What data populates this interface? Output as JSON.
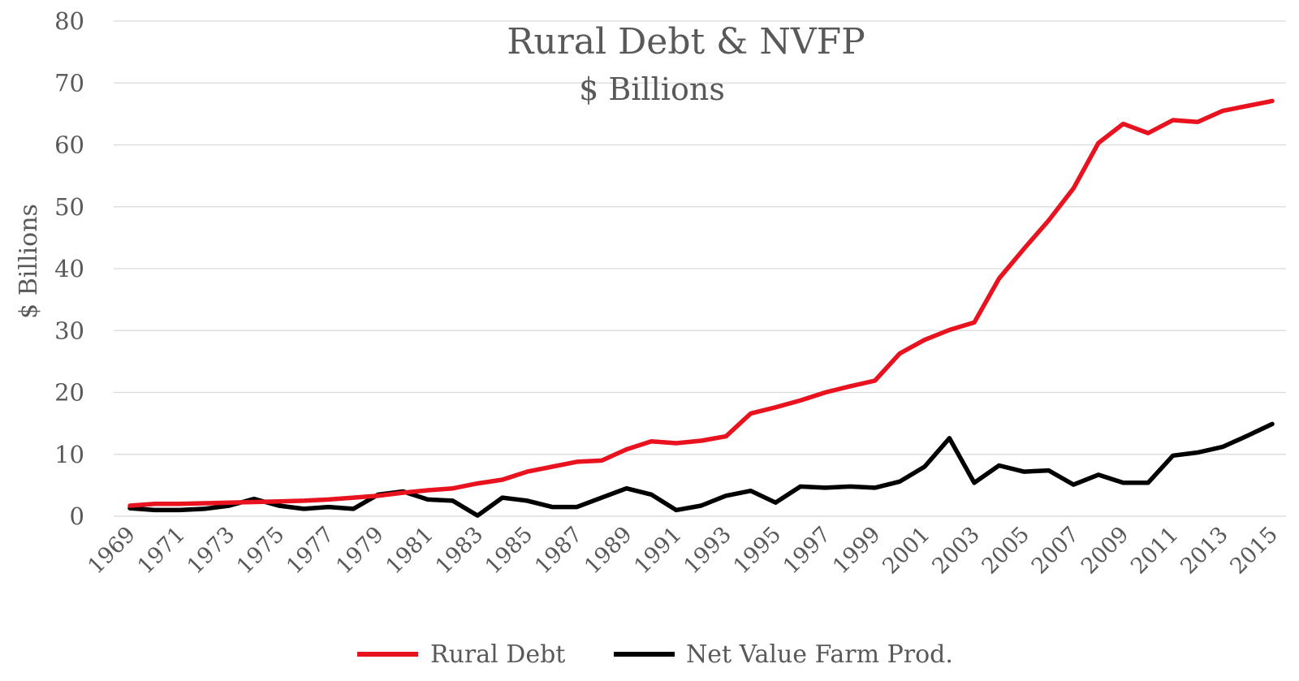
{
  "chart_data": {
    "type": "line",
    "title": "Rural Debt & NVFP",
    "subtitle": "$ Billions",
    "xlabel": "",
    "ylabel": "$ Billions",
    "ylim": [
      0,
      80
    ],
    "yticks": [
      "0",
      "10",
      "20",
      "30",
      "40",
      "50",
      "60",
      "70",
      "80"
    ],
    "x": [
      1969,
      1970,
      1971,
      1972,
      1973,
      1974,
      1975,
      1976,
      1977,
      1978,
      1979,
      1980,
      1981,
      1982,
      1983,
      1984,
      1985,
      1986,
      1987,
      1988,
      1989,
      1990,
      1991,
      1992,
      1993,
      1994,
      1995,
      1996,
      1997,
      1998,
      1999,
      2000,
      2001,
      2002,
      2003,
      2004,
      2005,
      2006,
      2007,
      2008,
      2009,
      2010,
      2011,
      2012,
      2013,
      2014,
      2015
    ],
    "xtick_labels": [
      "1969",
      "1971",
      "1973",
      "1975",
      "1977",
      "1979",
      "1981",
      "1983",
      "1985",
      "1987",
      "1989",
      "1991",
      "1993",
      "1995",
      "1997",
      "1999",
      "2001",
      "2003",
      "2005",
      "2007",
      "2009",
      "2011",
      "2013",
      "2015"
    ],
    "grid": true,
    "legend_position": "bottom",
    "series": [
      {
        "name": "Rural Debt",
        "color": "#e8131f",
        "values": [
          1.7,
          2.0,
          2.0,
          2.1,
          2.2,
          2.3,
          2.4,
          2.5,
          2.7,
          3.0,
          3.3,
          3.8,
          4.2,
          4.5,
          5.3,
          5.9,
          7.2,
          8.0,
          8.8,
          9.0,
          10.8,
          12.1,
          11.8,
          12.2,
          12.9,
          16.6,
          17.6,
          18.7,
          20.0,
          21.0,
          21.9,
          26.3,
          28.5,
          30.1,
          31.3,
          38.4,
          43.2,
          47.8,
          53.0,
          60.3,
          63.4,
          61.9,
          64.0,
          63.7,
          65.5,
          66.3,
          67.1
        ]
      },
      {
        "name": "Net Value Farm Prod.",
        "color": "#000000",
        "values": [
          1.3,
          1.0,
          1.0,
          1.2,
          1.7,
          2.8,
          1.7,
          1.2,
          1.5,
          1.2,
          3.5,
          4.0,
          2.7,
          2.5,
          0.1,
          3.0,
          2.5,
          1.5,
          1.5,
          3.0,
          4.5,
          3.5,
          1.0,
          1.7,
          3.3,
          4.1,
          2.2,
          4.8,
          4.6,
          4.8,
          4.6,
          5.6,
          8.0,
          12.6,
          5.4,
          8.2,
          7.2,
          7.4,
          5.1,
          6.7,
          5.4,
          5.4,
          9.8,
          10.3,
          11.2,
          13.0,
          14.9
        ]
      }
    ]
  }
}
